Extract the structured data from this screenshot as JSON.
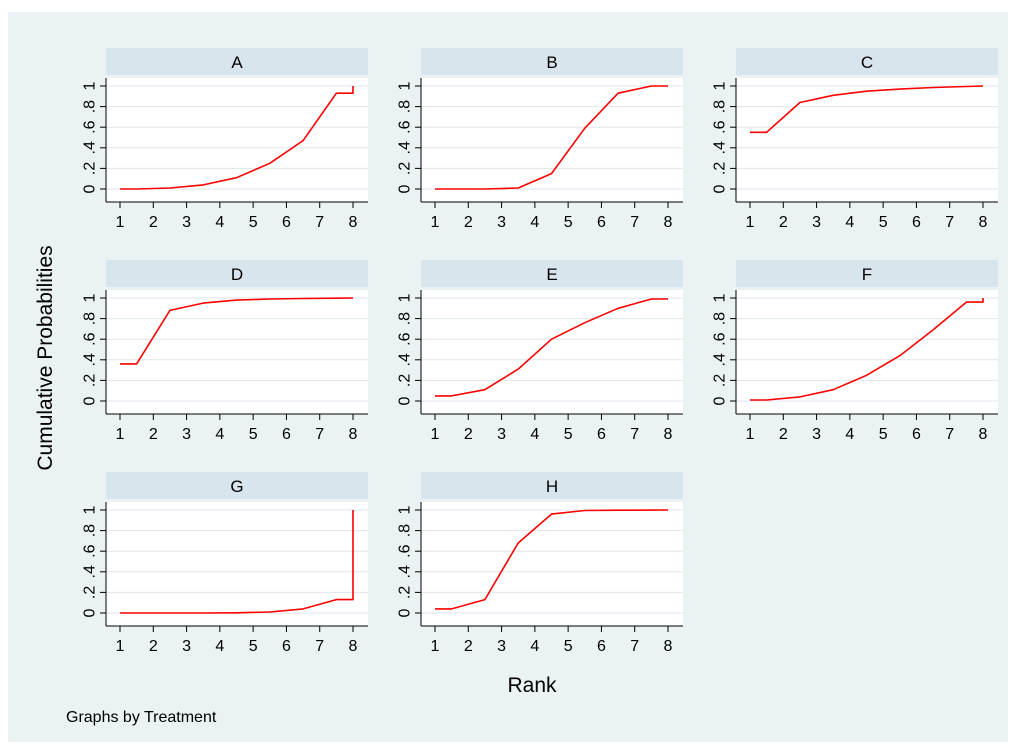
{
  "figure": {
    "ylabel": "Cumulative Probabilities",
    "xlabel": "Rank",
    "note": "Graphs by Treatment",
    "line_color": "#ff0000",
    "panel_background": "#ffffff",
    "outer_background": "#eaf2f3",
    "header_background": "#d8e5ec",
    "grid_color": "#dde6ec"
  },
  "chart_data": [
    {
      "type": "line",
      "title": "A",
      "x_ticks": [
        "1",
        "2",
        "3",
        "4",
        "5",
        "6",
        "7",
        "8"
      ],
      "y_ticks": [
        "0",
        ".2",
        ".4",
        ".6",
        ".8",
        "1"
      ],
      "xlim": [
        1,
        8
      ],
      "ylim": [
        0,
        1
      ],
      "grid": true,
      "series": [
        {
          "x": [
            1,
            1.5,
            2.5,
            3.5,
            4.5,
            5.5,
            6.5,
            7.5,
            8,
            8
          ],
          "y": [
            0,
            0,
            0.01,
            0.04,
            0.11,
            0.25,
            0.47,
            0.93,
            0.93,
            1.0
          ]
        }
      ]
    },
    {
      "type": "line",
      "title": "B",
      "x_ticks": [
        "1",
        "2",
        "3",
        "4",
        "5",
        "6",
        "7",
        "8"
      ],
      "y_ticks": [
        "0",
        ".2",
        ".4",
        ".6",
        ".8",
        "1"
      ],
      "xlim": [
        1,
        8
      ],
      "ylim": [
        0,
        1
      ],
      "grid": true,
      "series": [
        {
          "x": [
            1,
            1.5,
            2.5,
            3.5,
            4.5,
            5.5,
            6.5,
            7.5,
            8
          ],
          "y": [
            0,
            0,
            0,
            0.01,
            0.15,
            0.59,
            0.93,
            1.0,
            1.0
          ]
        }
      ]
    },
    {
      "type": "line",
      "title": "C",
      "x_ticks": [
        "1",
        "2",
        "3",
        "4",
        "5",
        "6",
        "7",
        "8"
      ],
      "y_ticks": [
        "0",
        ".2",
        ".4",
        ".6",
        ".8",
        "1"
      ],
      "xlim": [
        1,
        8
      ],
      "ylim": [
        0,
        1
      ],
      "grid": true,
      "series": [
        {
          "x": [
            1,
            1.5,
            2.5,
            3.5,
            4.5,
            5.5,
            6.5,
            7.5,
            8
          ],
          "y": [
            0.55,
            0.55,
            0.84,
            0.91,
            0.95,
            0.97,
            0.985,
            0.995,
            1.0
          ]
        }
      ]
    },
    {
      "type": "line",
      "title": "D",
      "x_ticks": [
        "1",
        "2",
        "3",
        "4",
        "5",
        "6",
        "7",
        "8"
      ],
      "y_ticks": [
        "0",
        ".2",
        ".4",
        ".6",
        ".8",
        "1"
      ],
      "xlim": [
        1,
        8
      ],
      "ylim": [
        0,
        1
      ],
      "grid": true,
      "series": [
        {
          "x": [
            1,
            1.5,
            2.5,
            3.5,
            4.5,
            5.5,
            6.5,
            7.5,
            8
          ],
          "y": [
            0.36,
            0.36,
            0.88,
            0.95,
            0.98,
            0.99,
            0.995,
            0.998,
            1.0
          ]
        }
      ]
    },
    {
      "type": "line",
      "title": "E",
      "x_ticks": [
        "1",
        "2",
        "3",
        "4",
        "5",
        "6",
        "7",
        "8"
      ],
      "y_ticks": [
        "0",
        ".2",
        ".4",
        ".6",
        ".8",
        "1"
      ],
      "xlim": [
        1,
        8
      ],
      "ylim": [
        0,
        1
      ],
      "grid": true,
      "series": [
        {
          "x": [
            1,
            1.5,
            2.5,
            3.5,
            4.5,
            5.5,
            6.5,
            7.5,
            8
          ],
          "y": [
            0.05,
            0.05,
            0.11,
            0.31,
            0.6,
            0.76,
            0.9,
            0.99,
            0.99
          ]
        }
      ]
    },
    {
      "type": "line",
      "title": "F",
      "x_ticks": [
        "1",
        "2",
        "3",
        "4",
        "5",
        "6",
        "7",
        "8"
      ],
      "y_ticks": [
        "0",
        ".2",
        ".4",
        ".6",
        ".8",
        "1"
      ],
      "xlim": [
        1,
        8
      ],
      "ylim": [
        0,
        1
      ],
      "grid": true,
      "series": [
        {
          "x": [
            1,
            1.5,
            2.5,
            3.5,
            4.5,
            5.5,
            6.5,
            7.5,
            8,
            8
          ],
          "y": [
            0.01,
            0.01,
            0.04,
            0.11,
            0.25,
            0.44,
            0.69,
            0.96,
            0.96,
            1.0
          ]
        }
      ]
    },
    {
      "type": "line",
      "title": "G",
      "x_ticks": [
        "1",
        "2",
        "3",
        "4",
        "5",
        "6",
        "7",
        "8"
      ],
      "y_ticks": [
        "0",
        ".2",
        ".4",
        ".6",
        ".8",
        "1"
      ],
      "xlim": [
        1,
        8
      ],
      "ylim": [
        0,
        1
      ],
      "grid": true,
      "series": [
        {
          "x": [
            1,
            1.5,
            2.5,
            3.5,
            4.5,
            5.5,
            6.5,
            7.5,
            8,
            8
          ],
          "y": [
            0,
            0,
            0,
            0,
            0.002,
            0.01,
            0.04,
            0.13,
            0.13,
            1.0
          ]
        }
      ]
    },
    {
      "type": "line",
      "title": "H",
      "x_ticks": [
        "1",
        "2",
        "3",
        "4",
        "5",
        "6",
        "7",
        "8"
      ],
      "y_ticks": [
        "0",
        ".2",
        ".4",
        ".6",
        ".8",
        "1"
      ],
      "xlim": [
        1,
        8
      ],
      "ylim": [
        0,
        1
      ],
      "grid": true,
      "series": [
        {
          "x": [
            1,
            1.5,
            2.5,
            3.5,
            4.5,
            5.5,
            6.5,
            7.5,
            8
          ],
          "y": [
            0.04,
            0.04,
            0.13,
            0.68,
            0.96,
            0.995,
            0.998,
            0.999,
            1.0
          ]
        }
      ]
    }
  ]
}
